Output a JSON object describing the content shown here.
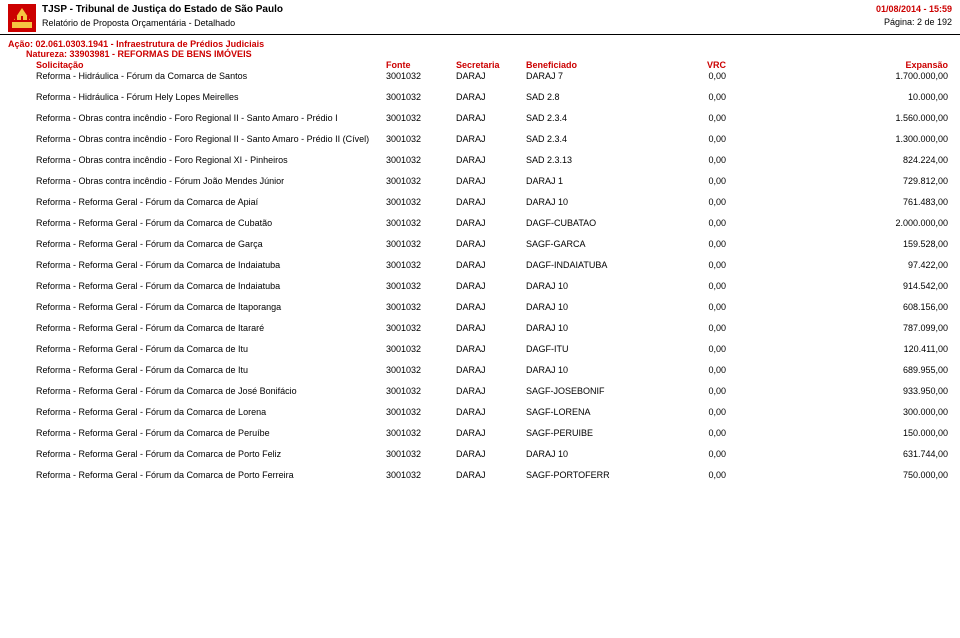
{
  "header": {
    "tribunal": "TJSP - Tribunal de Justiça do Estado de São Paulo",
    "report": "Relatório de Proposta Orçamentária - Detalhado",
    "datetime": "01/08/2014 - 15:59",
    "page": "Página: 2 de 192"
  },
  "action": "Ação: 02.061.0303.1941 - Infraestrutura de Prédios Judiciais",
  "nature": "Natureza: 33903981 - REFORMAS DE BENS IMÓVEIS",
  "columns": {
    "solicitacao": "Solicitação",
    "fonte": "Fonte",
    "secretaria": "Secretaria",
    "beneficiado": "Beneficiado",
    "vrc": "VRC",
    "expansao": "Expansão"
  },
  "rows": [
    {
      "s": "Reforma - Hidráulica - Fórum da Comarca de Santos",
      "f": "3001032",
      "sec": "DARAJ",
      "b": "DARAJ 7",
      "v": "0,00",
      "e": "1.700.000,00"
    },
    {
      "s": "Reforma - Hidráulica - Fórum Hely Lopes Meirelles",
      "f": "3001032",
      "sec": "DARAJ",
      "b": "SAD 2.8",
      "v": "0,00",
      "e": "10.000,00"
    },
    {
      "s": "Reforma - Obras contra incêndio - Foro Regional II - Santo Amaro - Prédio I",
      "f": "3001032",
      "sec": "DARAJ",
      "b": "SAD 2.3.4",
      "v": "0,00",
      "e": "1.560.000,00"
    },
    {
      "s": "Reforma - Obras contra incêndio - Foro Regional II - Santo Amaro - Prédio II (Cível)",
      "f": "3001032",
      "sec": "DARAJ",
      "b": "SAD 2.3.4",
      "v": "0,00",
      "e": "1.300.000,00"
    },
    {
      "s": "Reforma - Obras contra incêndio - Foro Regional XI - Pinheiros",
      "f": "3001032",
      "sec": "DARAJ",
      "b": "SAD 2.3.13",
      "v": "0,00",
      "e": "824.224,00"
    },
    {
      "s": "Reforma - Obras contra incêndio - Fórum João Mendes Júnior",
      "f": "3001032",
      "sec": "DARAJ",
      "b": "DARAJ 1",
      "v": "0,00",
      "e": "729.812,00"
    },
    {
      "s": "Reforma - Reforma Geral - Fórum da Comarca de Apiaí",
      "f": "3001032",
      "sec": "DARAJ",
      "b": "DARAJ 10",
      "v": "0,00",
      "e": "761.483,00"
    },
    {
      "s": "Reforma - Reforma Geral - Fórum da Comarca de Cubatão",
      "f": "3001032",
      "sec": "DARAJ",
      "b": "DAGF-CUBATAO",
      "v": "0,00",
      "e": "2.000.000,00"
    },
    {
      "s": "Reforma - Reforma Geral - Fórum da Comarca de Garça",
      "f": "3001032",
      "sec": "DARAJ",
      "b": "SAGF-GARCA",
      "v": "0,00",
      "e": "159.528,00"
    },
    {
      "s": "Reforma - Reforma Geral - Fórum da Comarca de Indaiatuba",
      "f": "3001032",
      "sec": "DARAJ",
      "b": "DAGF-INDAIATUBA",
      "v": "0,00",
      "e": "97.422,00"
    },
    {
      "s": "Reforma - Reforma Geral - Fórum da Comarca de Indaiatuba",
      "f": "3001032",
      "sec": "DARAJ",
      "b": "DARAJ 10",
      "v": "0,00",
      "e": "914.542,00"
    },
    {
      "s": "Reforma - Reforma Geral - Fórum da Comarca de Itaporanga",
      "f": "3001032",
      "sec": "DARAJ",
      "b": "DARAJ 10",
      "v": "0,00",
      "e": "608.156,00"
    },
    {
      "s": "Reforma - Reforma Geral - Fórum da Comarca de Itararé",
      "f": "3001032",
      "sec": "DARAJ",
      "b": "DARAJ 10",
      "v": "0,00",
      "e": "787.099,00"
    },
    {
      "s": "Reforma - Reforma Geral - Fórum da Comarca de Itu",
      "f": "3001032",
      "sec": "DARAJ",
      "b": "DAGF-ITU",
      "v": "0,00",
      "e": "120.411,00"
    },
    {
      "s": "Reforma - Reforma Geral - Fórum da Comarca de Itu",
      "f": "3001032",
      "sec": "DARAJ",
      "b": "DARAJ 10",
      "v": "0,00",
      "e": "689.955,00"
    },
    {
      "s": "Reforma - Reforma Geral - Fórum da Comarca de José Bonifácio",
      "f": "3001032",
      "sec": "DARAJ",
      "b": "SAGF-JOSEBONIF",
      "v": "0,00",
      "e": "933.950,00"
    },
    {
      "s": "Reforma - Reforma Geral - Fórum da Comarca de Lorena",
      "f": "3001032",
      "sec": "DARAJ",
      "b": "SAGF-LORENA",
      "v": "0,00",
      "e": "300.000,00"
    },
    {
      "s": "Reforma - Reforma Geral - Fórum da Comarca de Peruíbe",
      "f": "3001032",
      "sec": "DARAJ",
      "b": "SAGF-PERUIBE",
      "v": "0,00",
      "e": "150.000,00"
    },
    {
      "s": "Reforma - Reforma Geral - Fórum da Comarca de Porto Feliz",
      "f": "3001032",
      "sec": "DARAJ",
      "b": "DARAJ 10",
      "v": "0,00",
      "e": "631.744,00"
    },
    {
      "s": "Reforma - Reforma Geral - Fórum da Comarca de Porto Ferreira",
      "f": "3001032",
      "sec": "DARAJ",
      "b": "SAGF-PORTOFERR",
      "v": "0,00",
      "e": "750.000,00"
    }
  ],
  "logo_colors": {
    "bg": "#cc0000",
    "fg": "#f5c542"
  }
}
